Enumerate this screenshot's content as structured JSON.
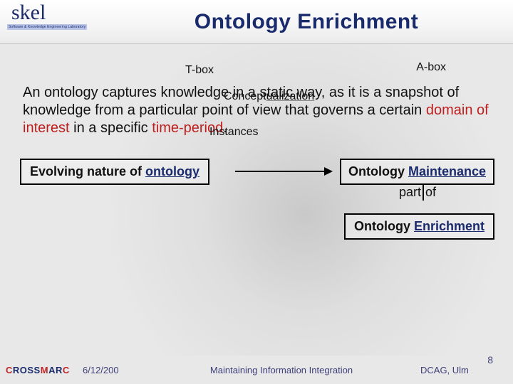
{
  "header": {
    "logo_script": "skel",
    "logo_tagline": "Software & Knowledge Engineering Laboratory",
    "title": "Ontology Enrichment"
  },
  "labels": {
    "tbox": "T-box",
    "abox": "A-box",
    "conceptualization_prefix": "Concept",
    "conceptualization_suffix": "ualization",
    "instances": "Instances"
  },
  "paragraph": {
    "seg1": "An ontology captures knowledge in a static way, as it is a snapshot of knowledge from a particular point of view that governs a certain ",
    "seg2_red": "domain of interest",
    "seg3": " in a specific ",
    "seg4_red": "time-period",
    "seg5": "."
  },
  "boxes": {
    "evolving_pre": "Evolving nature of ",
    "evolving_u": "ontology",
    "maint_pre": "Ontology ",
    "maint_u": "Maintenance",
    "part_of_pre": "part",
    "part_of_post": "of",
    "enrich_pre": "Ontology ",
    "enrich_u": "Enrichment"
  },
  "footer": {
    "logo": "CROSSMARC",
    "date": "6/12/200",
    "center": "Maintaining Information Integration",
    "right": "DCAG, Ulm",
    "page": "8"
  },
  "colors": {
    "title": "#1a2b6d",
    "red": "#bf1e1e",
    "underline": "#1a2b6d",
    "background": "#e8e8e8"
  }
}
